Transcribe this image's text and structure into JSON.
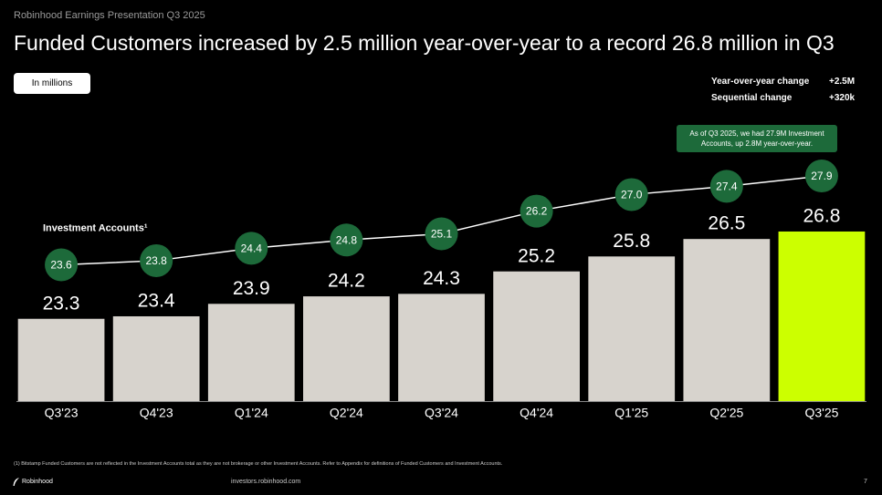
{
  "header": {
    "deck": "Robinhood Earnings Presentation Q3 2025",
    "title": "Funded Customers increased by 2.5 million year-over-year to a record 26.8 million in Q3",
    "unit_button": "In millions"
  },
  "summary": [
    {
      "label": "Year-over-year change",
      "value": "+2.5M"
    },
    {
      "label": "Sequential change",
      "value": "+320k"
    }
  ],
  "callout": "As of Q3 2025, we had 27.9M Investment Accounts, up 2.8M year-over-year.",
  "chart_data": {
    "type": "bar",
    "categories": [
      "Q3'23",
      "Q4'23",
      "Q1'24",
      "Q2'24",
      "Q3'24",
      "Q4'24",
      "Q1'25",
      "Q2'25",
      "Q3'25"
    ],
    "ylim": [
      20,
      30.6
    ],
    "y2lim": [
      17,
      29.8
    ],
    "series": [
      {
        "type": "bar",
        "colors": [
          "#d7d3cd",
          "#d7d3cd",
          "#d7d3cd",
          "#d7d3cd",
          "#d7d3cd",
          "#d7d3cd",
          "#d7d3cd",
          "#d7d3cd",
          "#ccff00"
        ],
        "values": [
          23.3,
          23.4,
          23.9,
          24.2,
          24.3,
          25.2,
          25.8,
          26.5,
          26.8
        ]
      },
      {
        "type": "line",
        "name": "Investment Accounts¹",
        "axis": "y2",
        "color": "#ffffff",
        "marker_color": "#1d6a3a",
        "values": [
          23.6,
          23.8,
          24.4,
          24.8,
          25.1,
          26.2,
          27.0,
          27.4,
          27.9
        ],
        "value_labels": [
          "23.6",
          "23.8",
          "24.4",
          "24.8",
          "25.1",
          "26.2",
          "27.0",
          "27.4",
          "27.9"
        ]
      }
    ]
  },
  "footnote": "(1) Bitstamp Funded Customers are not reflected in the Investment Accounts total as they are not brokerage or other Investment Accounts. Refer to Appendix for definitions of Funded Customers and Investment Accounts.",
  "footer": {
    "brand": "Robinhood",
    "url": "investors.robinhood.com",
    "page": "7"
  }
}
